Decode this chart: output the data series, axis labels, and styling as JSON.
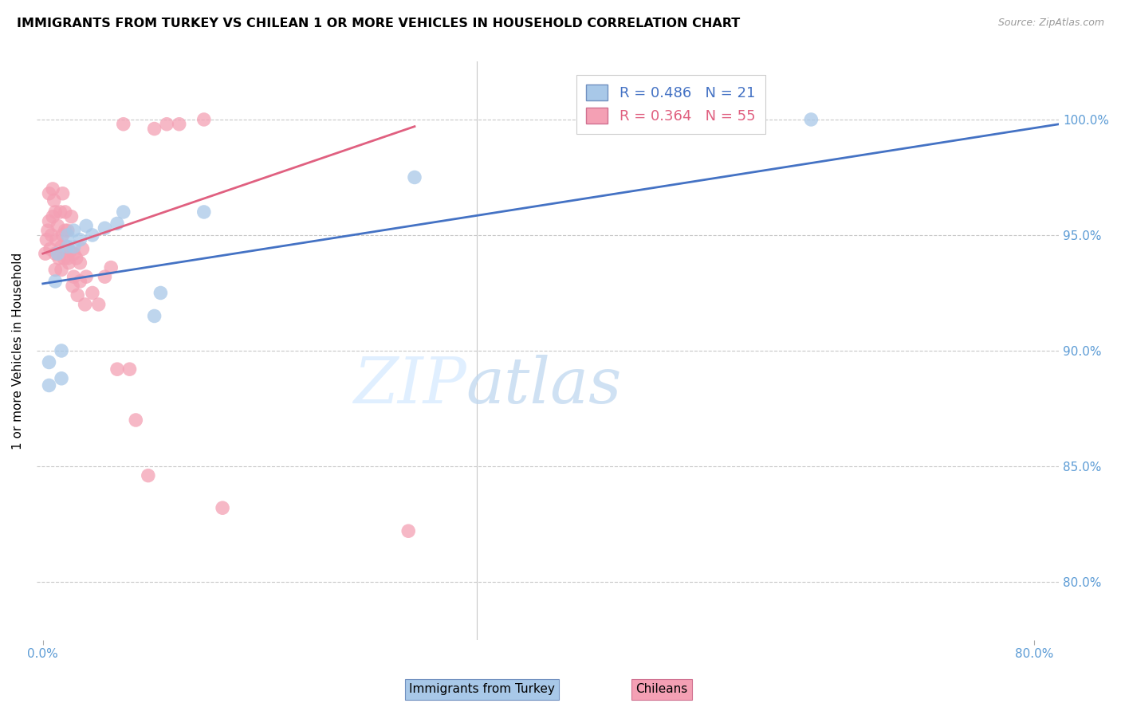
{
  "title": "IMMIGRANTS FROM TURKEY VS CHILEAN 1 OR MORE VEHICLES IN HOUSEHOLD CORRELATION CHART",
  "source": "Source: ZipAtlas.com",
  "ylabel": "1 or more Vehicles in Household",
  "legend_label_blue": "Immigrants from Turkey",
  "legend_label_pink": "Chileans",
  "R_blue": 0.486,
  "N_blue": 21,
  "R_pink": 0.364,
  "N_pink": 55,
  "x_ticks_labels": [
    "0.0%",
    "80.0%"
  ],
  "x_tick_vals": [
    0.0,
    0.8
  ],
  "y_ticks": [
    "80.0%",
    "85.0%",
    "90.0%",
    "95.0%",
    "100.0%"
  ],
  "y_tick_vals": [
    0.8,
    0.85,
    0.9,
    0.95,
    1.0
  ],
  "xlim": [
    -0.005,
    0.82
  ],
  "ylim": [
    0.775,
    1.025
  ],
  "color_blue": "#a8c8e8",
  "color_pink": "#f4a0b4",
  "line_color_blue": "#4472c4",
  "line_color_pink": "#e06080",
  "tick_color": "#5b9bd5",
  "grid_color": "#c8c8c8",
  "blue_scatter_x": [
    0.005,
    0.005,
    0.01,
    0.012,
    0.015,
    0.015,
    0.02,
    0.02,
    0.025,
    0.025,
    0.03,
    0.035,
    0.04,
    0.05,
    0.06,
    0.065,
    0.09,
    0.095,
    0.13,
    0.3,
    0.62
  ],
  "blue_scatter_y": [
    0.885,
    0.895,
    0.93,
    0.942,
    0.888,
    0.9,
    0.945,
    0.95,
    0.945,
    0.952,
    0.948,
    0.954,
    0.95,
    0.953,
    0.955,
    0.96,
    0.915,
    0.925,
    0.96,
    0.975,
    1.0
  ],
  "pink_scatter_x": [
    0.002,
    0.003,
    0.004,
    0.005,
    0.005,
    0.006,
    0.007,
    0.008,
    0.008,
    0.009,
    0.01,
    0.01,
    0.01,
    0.011,
    0.012,
    0.013,
    0.014,
    0.015,
    0.015,
    0.016,
    0.016,
    0.017,
    0.018,
    0.018,
    0.019,
    0.02,
    0.02,
    0.021,
    0.022,
    0.023,
    0.024,
    0.025,
    0.025,
    0.027,
    0.028,
    0.03,
    0.03,
    0.032,
    0.034,
    0.035,
    0.04,
    0.045,
    0.05,
    0.055,
    0.06,
    0.065,
    0.07,
    0.075,
    0.085,
    0.09,
    0.1,
    0.11,
    0.13,
    0.145,
    0.295
  ],
  "pink_scatter_y": [
    0.942,
    0.948,
    0.952,
    0.956,
    0.968,
    0.944,
    0.95,
    0.958,
    0.97,
    0.965,
    0.935,
    0.942,
    0.96,
    0.948,
    0.954,
    0.94,
    0.96,
    0.935,
    0.945,
    0.95,
    0.968,
    0.94,
    0.952,
    0.96,
    0.945,
    0.94,
    0.952,
    0.938,
    0.943,
    0.958,
    0.928,
    0.932,
    0.942,
    0.94,
    0.924,
    0.93,
    0.938,
    0.944,
    0.92,
    0.932,
    0.925,
    0.92,
    0.932,
    0.936,
    0.892,
    0.998,
    0.892,
    0.87,
    0.846,
    0.996,
    0.998,
    0.998,
    1.0,
    0.832,
    0.822
  ],
  "blue_line_x0": 0.0,
  "blue_line_x1": 0.82,
  "blue_line_y0": 0.929,
  "blue_line_y1": 0.998,
  "pink_line_x0": 0.0,
  "pink_line_x1": 0.3,
  "pink_line_y0": 0.942,
  "pink_line_y1": 0.997
}
